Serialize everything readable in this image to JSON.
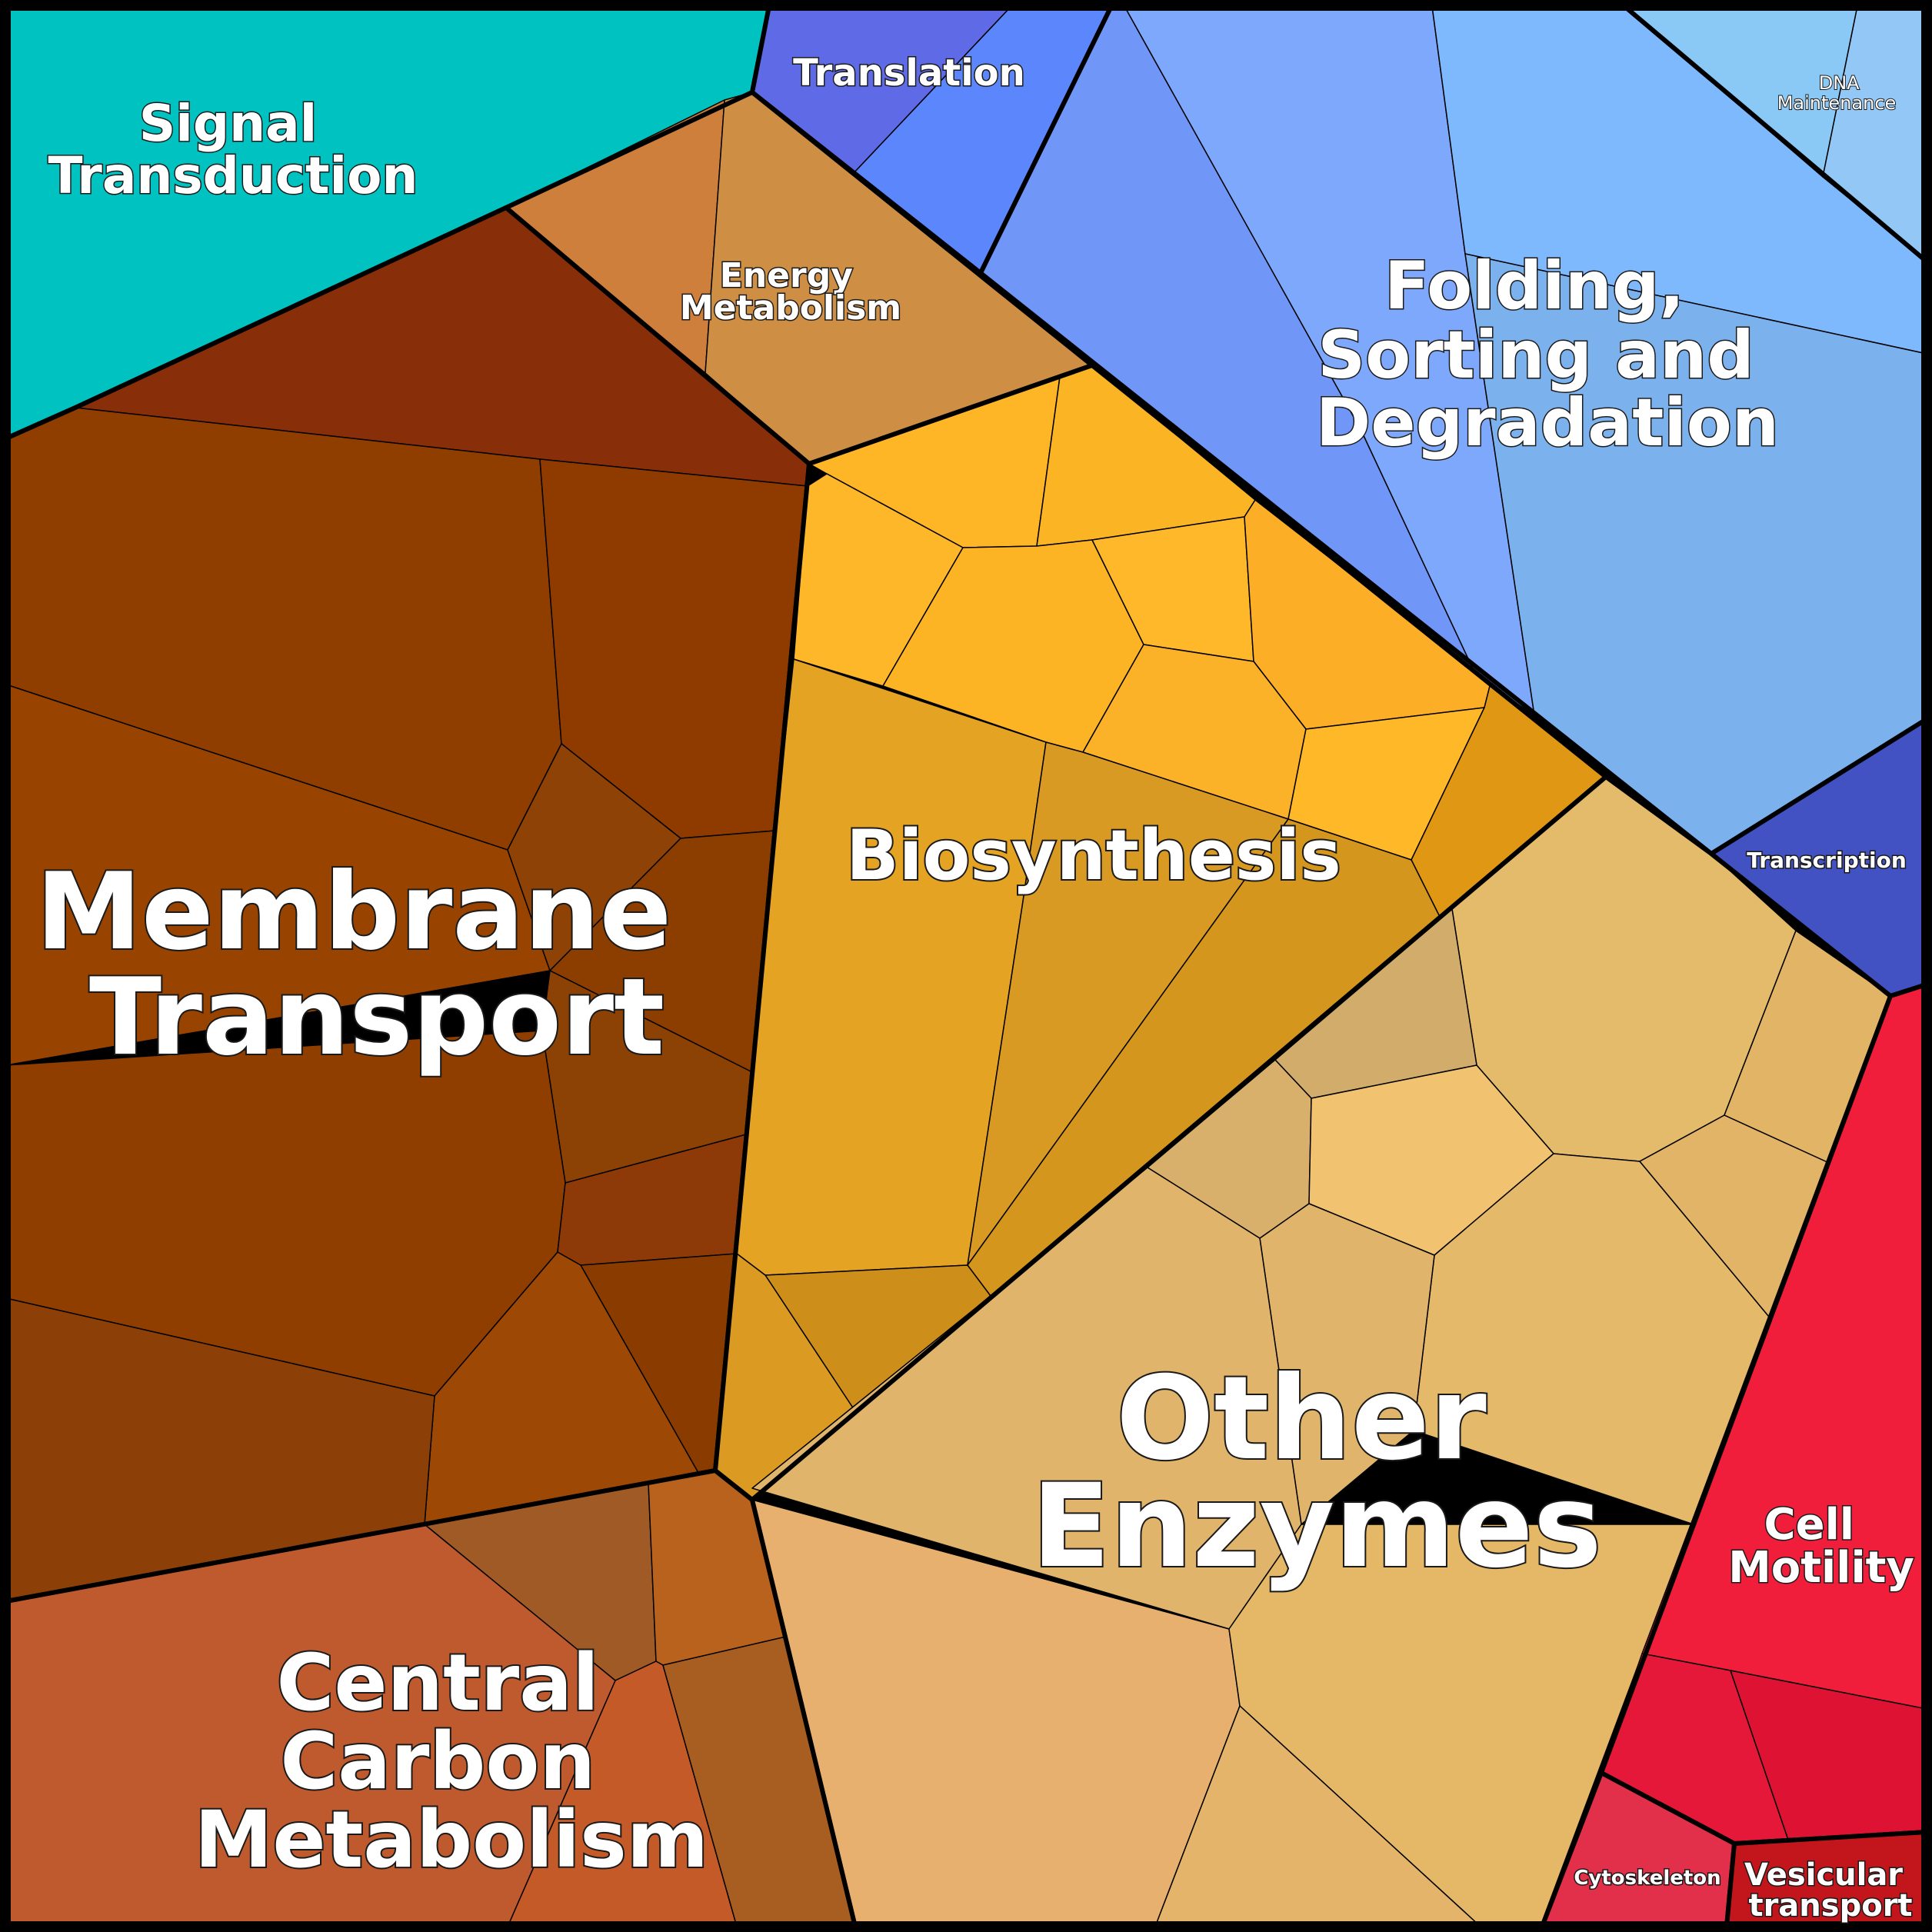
{
  "diagram": {
    "type": "voronoi-treemap",
    "categories": [
      {
        "id": "signal-transduction",
        "label_lines": [
          "Signal",
          "Transduction"
        ],
        "color": "#00C2C0"
      },
      {
        "id": "translation",
        "label_lines": [
          "Translation"
        ],
        "color": "#5F6BE6"
      },
      {
        "id": "folding-sorting-degradation",
        "label_lines": [
          "Folding,",
          "Sorting and",
          "Degradation"
        ],
        "color": "#7BA8F8"
      },
      {
        "id": "dna-maintenance",
        "label_lines": [
          "DNA",
          "Maintenance"
        ],
        "color": "#8EC6F6"
      },
      {
        "id": "energy-metabolism",
        "label_lines": [
          "Energy",
          "Metabolism"
        ],
        "color": "#CE8F44"
      },
      {
        "id": "membrane-transport",
        "label_lines": [
          "Membrane",
          "Transport"
        ],
        "color": "#8E3E00"
      },
      {
        "id": "biosynthesis",
        "label_lines": [
          "Biosynthesis"
        ],
        "color": "#E4A324"
      },
      {
        "id": "transcription",
        "label_lines": [
          "Transcription"
        ],
        "color": "#4252C2"
      },
      {
        "id": "other-enzymes",
        "label_lines": [
          "Other",
          "Enzymes"
        ],
        "color": "#E4B96A"
      },
      {
        "id": "cell-motility",
        "label_lines": [
          "Cell",
          "Motility"
        ],
        "color": "#F01E3A"
      },
      {
        "id": "central-carbon-metabolism",
        "label_lines": [
          "Central",
          "Carbon",
          "Metabolism"
        ],
        "color": "#BE5A2E"
      },
      {
        "id": "cytoskeleton",
        "label_lines": [
          "Cytoskeleton"
        ],
        "color": "#E2304A"
      },
      {
        "id": "vesicular-transport",
        "label_lines": [
          "Vesicular",
          "transport"
        ],
        "color": "#C2161C"
      }
    ]
  }
}
